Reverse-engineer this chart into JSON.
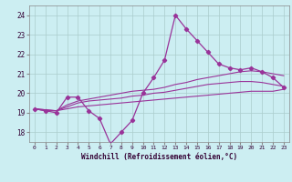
{
  "xlabel": "Windchill (Refroidissement éolien,°C)",
  "xlim": [
    -0.5,
    23.5
  ],
  "ylim": [
    17.5,
    24.5
  ],
  "xticks": [
    0,
    1,
    2,
    3,
    4,
    5,
    6,
    7,
    8,
    9,
    10,
    11,
    12,
    13,
    14,
    15,
    16,
    17,
    18,
    19,
    20,
    21,
    22,
    23
  ],
  "yticks": [
    18,
    19,
    20,
    21,
    22,
    23,
    24
  ],
  "bg_color": "#cceef2",
  "line_color": "#993399",
  "grid_color": "#aacccc",
  "curves": {
    "main": {
      "x": [
        0,
        1,
        2,
        3,
        4,
        5,
        6,
        7,
        8,
        9,
        10,
        11,
        12,
        13,
        14,
        15,
        16,
        17,
        18,
        19,
        20,
        21,
        22,
        23
      ],
      "y": [
        19.2,
        19.1,
        19.0,
        19.8,
        19.8,
        19.1,
        18.7,
        17.4,
        18.0,
        18.6,
        20.0,
        20.8,
        21.7,
        24.0,
        23.3,
        22.7,
        22.1,
        21.5,
        21.3,
        21.2,
        21.3,
        21.1,
        20.8,
        20.3
      ]
    },
    "upper": {
      "x": [
        0,
        1,
        2,
        3,
        4,
        5,
        6,
        7,
        8,
        9,
        10,
        11,
        12,
        13,
        14,
        15,
        16,
        17,
        18,
        19,
        20,
        21,
        22,
        23
      ],
      "y": [
        19.2,
        19.1,
        19.1,
        19.4,
        19.6,
        19.7,
        19.8,
        19.9,
        20.0,
        20.1,
        20.15,
        20.2,
        20.3,
        20.45,
        20.55,
        20.7,
        20.8,
        20.9,
        21.0,
        21.1,
        21.15,
        21.1,
        21.0,
        20.9
      ]
    },
    "middle": {
      "x": [
        0,
        1,
        2,
        3,
        4,
        5,
        6,
        7,
        8,
        9,
        10,
        11,
        12,
        13,
        14,
        15,
        16,
        17,
        18,
        19,
        20,
        21,
        22,
        23
      ],
      "y": [
        19.2,
        19.15,
        19.1,
        19.3,
        19.5,
        19.6,
        19.65,
        19.7,
        19.75,
        19.85,
        19.9,
        20.0,
        20.05,
        20.15,
        20.25,
        20.35,
        20.45,
        20.5,
        20.55,
        20.6,
        20.6,
        20.55,
        20.45,
        20.35
      ]
    },
    "lower": {
      "x": [
        0,
        1,
        2,
        3,
        4,
        5,
        6,
        7,
        8,
        9,
        10,
        11,
        12,
        13,
        14,
        15,
        16,
        17,
        18,
        19,
        20,
        21,
        22,
        23
      ],
      "y": [
        19.2,
        19.15,
        19.1,
        19.2,
        19.3,
        19.35,
        19.4,
        19.45,
        19.5,
        19.55,
        19.6,
        19.65,
        19.7,
        19.75,
        19.8,
        19.85,
        19.9,
        19.95,
        20.0,
        20.05,
        20.1,
        20.1,
        20.1,
        20.2
      ]
    }
  }
}
